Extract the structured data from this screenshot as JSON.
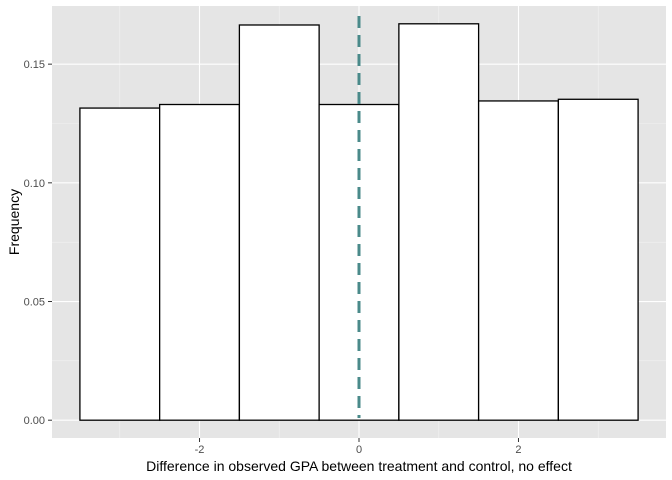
{
  "chart_data": {
    "type": "bar",
    "title": "",
    "xlabel": "Difference in observed GPA between treatment and control, no effect",
    "ylabel": "Frequency",
    "x_ticks": [
      {
        "value": -2,
        "label": "-2"
      },
      {
        "value": 0,
        "label": "0"
      },
      {
        "value": 2,
        "label": "2"
      }
    ],
    "y_ticks": [
      {
        "value": 0.0,
        "label": "0.00"
      },
      {
        "value": 0.05,
        "label": "0.05"
      },
      {
        "value": 0.1,
        "label": "0.10"
      },
      {
        "value": 0.15,
        "label": "0.15"
      }
    ],
    "xlim": [
      -3.85,
      3.85
    ],
    "ylim": [
      -0.0075,
      0.1745
    ],
    "bins": [
      {
        "x_start": -3.5,
        "x_end": -2.5,
        "value": 0.1315
      },
      {
        "x_start": -2.5,
        "x_end": -1.5,
        "value": 0.133
      },
      {
        "x_start": -1.5,
        "x_end": -0.5,
        "value": 0.1665
      },
      {
        "x_start": -0.5,
        "x_end": 0.5,
        "value": 0.133
      },
      {
        "x_start": 0.5,
        "x_end": 1.5,
        "value": 0.167
      },
      {
        "x_start": 1.5,
        "x_end": 2.5,
        "value": 0.1345
      },
      {
        "x_start": 2.5,
        "x_end": 3.5,
        "value": 0.1352
      }
    ],
    "reference_line": {
      "x": 0,
      "style": "dashed",
      "color": "#4a8a8a"
    },
    "bar_fill": "#ffffff",
    "bar_stroke": "#000000",
    "panel_background": "#e5e5e5",
    "grid": true
  }
}
